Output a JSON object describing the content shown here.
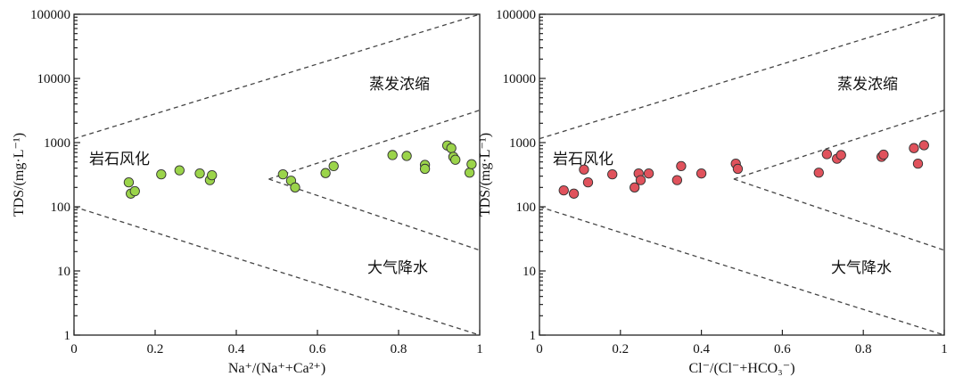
{
  "chart_data": [
    {
      "type": "scatter",
      "xlabel": "Na⁺/(Na⁺+Ca²⁺)",
      "ylabel": "TDS/(mg·L⁻¹)",
      "xlim": [
        0,
        1
      ],
      "ylim": [
        1,
        100000
      ],
      "yscale": "log",
      "x_ticks": [
        "0",
        "0.2",
        "0.4",
        "0.6",
        "0.8",
        "1"
      ],
      "y_ticks": [
        "1",
        "10",
        "100",
        "1000",
        "10000",
        "100000"
      ],
      "marker_color": "#9bd44a",
      "region_labels": {
        "evaporation": "蒸发浓缩",
        "rock": "岩石风化",
        "precipitation": "大气降水"
      },
      "points": [
        {
          "x": 0.135,
          "y": 240
        },
        {
          "x": 0.14,
          "y": 160
        },
        {
          "x": 0.15,
          "y": 175
        },
        {
          "x": 0.215,
          "y": 320
        },
        {
          "x": 0.26,
          "y": 370
        },
        {
          "x": 0.31,
          "y": 330
        },
        {
          "x": 0.335,
          "y": 260
        },
        {
          "x": 0.34,
          "y": 310
        },
        {
          "x": 0.515,
          "y": 320
        },
        {
          "x": 0.535,
          "y": 255
        },
        {
          "x": 0.545,
          "y": 200
        },
        {
          "x": 0.62,
          "y": 335
        },
        {
          "x": 0.64,
          "y": 430
        },
        {
          "x": 0.785,
          "y": 640
        },
        {
          "x": 0.82,
          "y": 620
        },
        {
          "x": 0.865,
          "y": 450
        },
        {
          "x": 0.865,
          "y": 390
        },
        {
          "x": 0.92,
          "y": 900
        },
        {
          "x": 0.93,
          "y": 820
        },
        {
          "x": 0.935,
          "y": 600
        },
        {
          "x": 0.94,
          "y": 540
        },
        {
          "x": 0.975,
          "y": 340
        },
        {
          "x": 0.98,
          "y": 460
        }
      ]
    },
    {
      "type": "scatter",
      "xlabel": "Cl⁻/(Cl⁻+HCO₃⁻)",
      "ylabel": "TDS/(mg·L⁻¹)",
      "xlim": [
        0,
        1
      ],
      "ylim": [
        1,
        100000
      ],
      "yscale": "log",
      "x_ticks": [
        "0",
        "0.2",
        "0.4",
        "0.6",
        "0.8",
        "1"
      ],
      "y_ticks": [
        "1",
        "10",
        "100",
        "1000",
        "10000",
        "100000"
      ],
      "marker_color": "#e0525c",
      "region_labels": {
        "evaporation": "蒸发浓缩",
        "rock": "岩石风化",
        "precipitation": "大气降水"
      },
      "points": [
        {
          "x": 0.06,
          "y": 180
        },
        {
          "x": 0.085,
          "y": 160
        },
        {
          "x": 0.11,
          "y": 380
        },
        {
          "x": 0.12,
          "y": 240
        },
        {
          "x": 0.18,
          "y": 320
        },
        {
          "x": 0.235,
          "y": 200
        },
        {
          "x": 0.245,
          "y": 330
        },
        {
          "x": 0.25,
          "y": 260
        },
        {
          "x": 0.27,
          "y": 330
        },
        {
          "x": 0.34,
          "y": 260
        },
        {
          "x": 0.35,
          "y": 430
        },
        {
          "x": 0.4,
          "y": 330
        },
        {
          "x": 0.485,
          "y": 470
        },
        {
          "x": 0.49,
          "y": 390
        },
        {
          "x": 0.69,
          "y": 340
        },
        {
          "x": 0.71,
          "y": 660
        },
        {
          "x": 0.735,
          "y": 560
        },
        {
          "x": 0.745,
          "y": 640
        },
        {
          "x": 0.845,
          "y": 600
        },
        {
          "x": 0.85,
          "y": 650
        },
        {
          "x": 0.925,
          "y": 820
        },
        {
          "x": 0.935,
          "y": 470
        },
        {
          "x": 0.95,
          "y": 910
        }
      ]
    }
  ]
}
